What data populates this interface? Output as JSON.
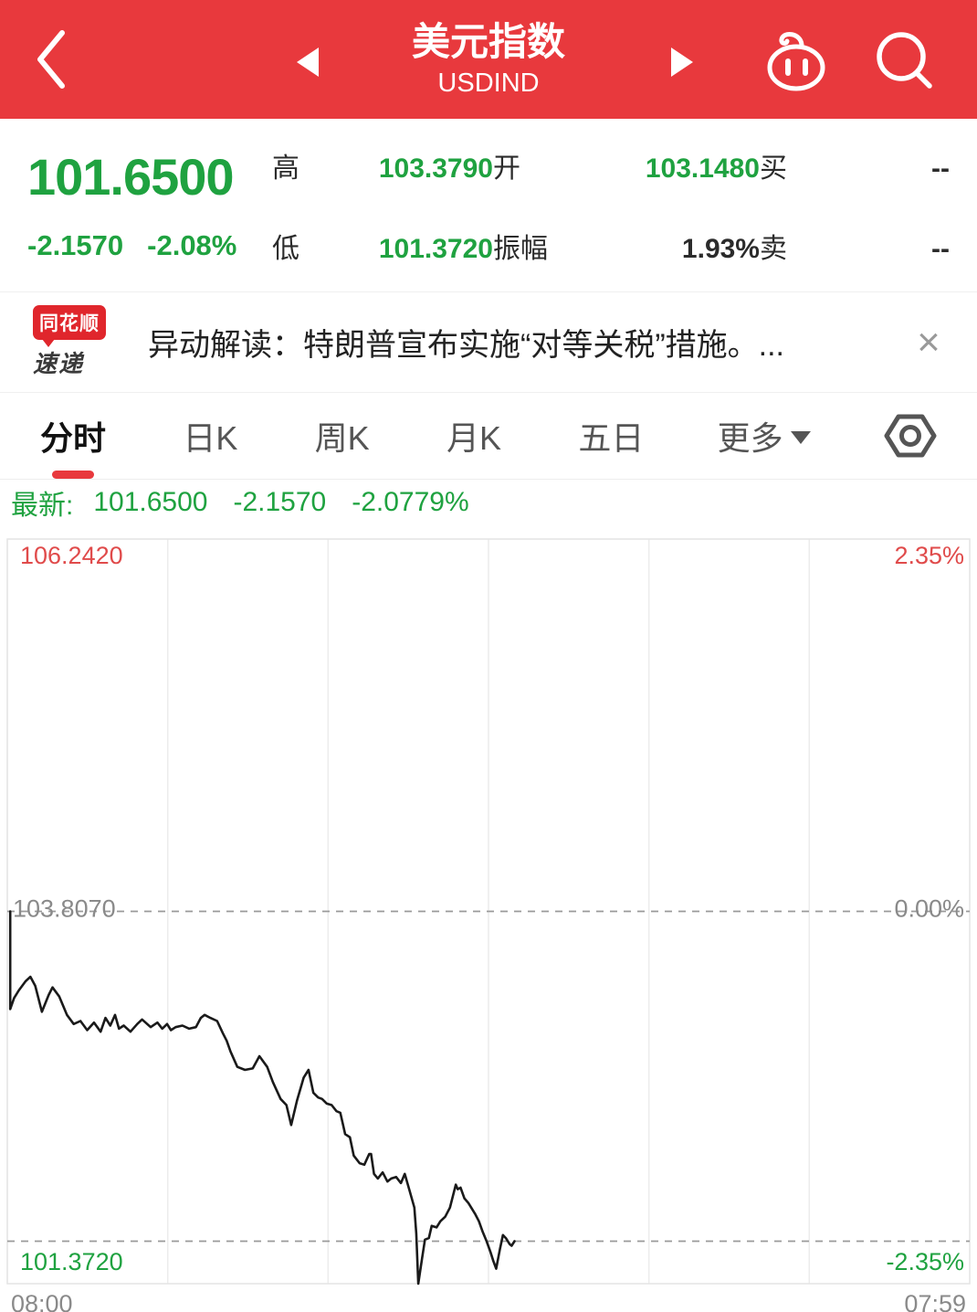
{
  "header": {
    "title": "美元指数",
    "subtitle": "USDIND"
  },
  "quote": {
    "price": "101.6500",
    "change": "-2.1570",
    "change_pct": "-2.08%",
    "stats": [
      {
        "label": "高",
        "value": "103.3790"
      },
      {
        "label": "开",
        "value": "103.1480"
      },
      {
        "label": "买",
        "value": "--"
      },
      {
        "label": "低",
        "value": "101.3720"
      },
      {
        "label": "振幅",
        "value": "1.93%"
      },
      {
        "label": "卖",
        "value": "--"
      }
    ]
  },
  "news": {
    "badge_line1": "同花顺",
    "badge_line2": "速递",
    "text": "异动解读：特朗普宣布实施“对等关税”措施。...",
    "close_label": "×"
  },
  "tabs": {
    "items": [
      "分时",
      "日K",
      "周K",
      "月K",
      "五日"
    ],
    "active": "分时",
    "more_label": "更多"
  },
  "latest_bar": {
    "label": "最新:",
    "price": "101.6500",
    "change": "-2.1570",
    "change_pct": "-2.0779%"
  },
  "chart_data": {
    "type": "line",
    "title": "美元指数 分时",
    "x_axis": {
      "start_label": "08:00",
      "end_label": "07:59",
      "gridline_count": 6
    },
    "y_axis": {
      "top_price_label": "106.2420",
      "top_pct_label": "2.35%",
      "mid_price_label": "103.8070",
      "mid_pct_label": "0.00%",
      "bottom_price_label": "101.3720",
      "bottom_pct_label": "-2.35%",
      "ylim": [
        101.372,
        106.242
      ]
    },
    "prev_close": 103.807,
    "latest_price": 101.65,
    "legend_position": "none",
    "series": [
      {
        "name": "price",
        "points": [
          [
            0.003,
            103.807
          ],
          [
            0.003,
            103.168
          ],
          [
            0.007,
            103.24
          ],
          [
            0.012,
            103.29
          ],
          [
            0.019,
            103.35
          ],
          [
            0.024,
            103.379
          ],
          [
            0.029,
            103.32
          ],
          [
            0.036,
            103.15
          ],
          [
            0.043,
            103.26
          ],
          [
            0.047,
            103.31
          ],
          [
            0.054,
            103.25
          ],
          [
            0.062,
            103.13
          ],
          [
            0.069,
            103.07
          ],
          [
            0.076,
            103.09
          ],
          [
            0.083,
            103.03
          ],
          [
            0.09,
            103.08
          ],
          [
            0.097,
            103.02
          ],
          [
            0.102,
            103.11
          ],
          [
            0.107,
            103.06
          ],
          [
            0.112,
            103.13
          ],
          [
            0.116,
            103.04
          ],
          [
            0.121,
            103.06
          ],
          [
            0.128,
            103.02
          ],
          [
            0.135,
            103.07
          ],
          [
            0.14,
            103.1
          ],
          [
            0.149,
            103.05
          ],
          [
            0.156,
            103.08
          ],
          [
            0.161,
            103.04
          ],
          [
            0.166,
            103.07
          ],
          [
            0.17,
            103.03
          ],
          [
            0.175,
            103.05
          ],
          [
            0.182,
            103.06
          ],
          [
            0.189,
            103.04
          ],
          [
            0.196,
            103.05
          ],
          [
            0.201,
            103.11
          ],
          [
            0.205,
            103.13
          ],
          [
            0.211,
            103.11
          ],
          [
            0.218,
            103.09
          ],
          [
            0.224,
            103.01
          ],
          [
            0.228,
            102.96
          ],
          [
            0.232,
            102.89
          ],
          [
            0.239,
            102.79
          ],
          [
            0.247,
            102.77
          ],
          [
            0.255,
            102.78
          ],
          [
            0.262,
            102.86
          ],
          [
            0.27,
            102.79
          ],
          [
            0.276,
            102.69
          ],
          [
            0.284,
            102.58
          ],
          [
            0.29,
            102.54
          ],
          [
            0.295,
            102.41
          ],
          [
            0.301,
            102.57
          ],
          [
            0.308,
            102.72
          ],
          [
            0.313,
            102.77
          ],
          [
            0.318,
            102.62
          ],
          [
            0.323,
            102.59
          ],
          [
            0.327,
            102.58
          ],
          [
            0.332,
            102.55
          ],
          [
            0.337,
            102.54
          ],
          [
            0.342,
            102.5
          ],
          [
            0.346,
            102.49
          ],
          [
            0.351,
            102.35
          ],
          [
            0.356,
            102.33
          ],
          [
            0.36,
            102.21
          ],
          [
            0.366,
            102.16
          ],
          [
            0.371,
            102.15
          ],
          [
            0.376,
            102.22
          ],
          [
            0.378,
            102.22
          ],
          [
            0.381,
            102.09
          ],
          [
            0.385,
            102.06
          ],
          [
            0.39,
            102.1
          ],
          [
            0.395,
            102.04
          ],
          [
            0.399,
            102.06
          ],
          [
            0.404,
            102.07
          ],
          [
            0.409,
            102.03
          ],
          [
            0.413,
            102.09
          ],
          [
            0.418,
            101.98
          ],
          [
            0.423,
            101.87
          ],
          [
            0.425,
            101.7
          ],
          [
            0.427,
            101.372
          ],
          [
            0.431,
            101.54
          ],
          [
            0.434,
            101.66
          ],
          [
            0.438,
            101.67
          ],
          [
            0.441,
            101.75
          ],
          [
            0.446,
            101.74
          ],
          [
            0.45,
            101.78
          ],
          [
            0.455,
            101.81
          ],
          [
            0.46,
            101.87
          ],
          [
            0.466,
            102.02
          ],
          [
            0.468,
            101.99
          ],
          [
            0.471,
            102.0
          ],
          [
            0.475,
            101.93
          ],
          [
            0.479,
            101.9
          ],
          [
            0.486,
            101.83
          ],
          [
            0.49,
            101.78
          ],
          [
            0.494,
            101.71
          ],
          [
            0.498,
            101.65
          ],
          [
            0.502,
            101.58
          ],
          [
            0.505,
            101.52
          ],
          [
            0.508,
            101.47
          ],
          [
            0.512,
            101.6
          ],
          [
            0.515,
            101.69
          ],
          [
            0.518,
            101.67
          ],
          [
            0.522,
            101.63
          ],
          [
            0.524,
            101.62
          ],
          [
            0.527,
            101.65
          ]
        ]
      }
    ]
  },
  "colors": {
    "accent_red": "#E8393D",
    "up_down_green": "#1FA240",
    "chart_label_red": "#E04B4B",
    "chart_label_gray": "#8A8A8A",
    "price_line": "#1A1A1A"
  }
}
